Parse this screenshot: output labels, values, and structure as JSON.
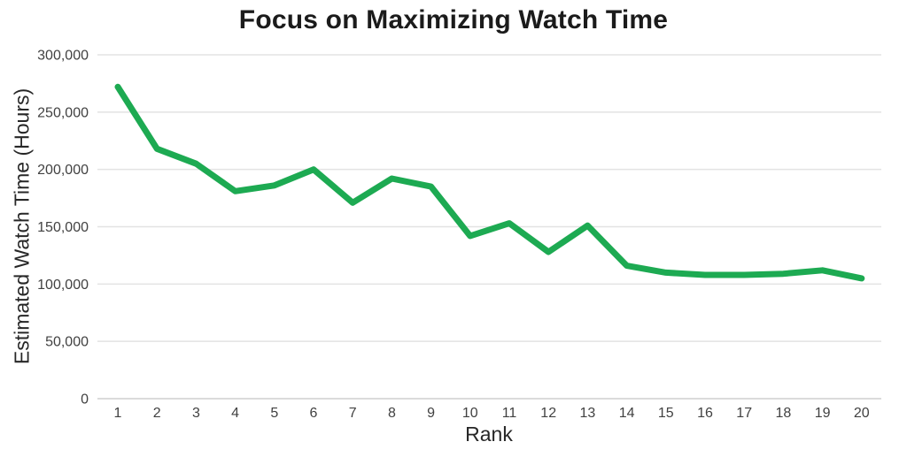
{
  "chart_data": {
    "type": "line",
    "title": "Focus on Maximizing Watch Time",
    "xlabel": "Rank",
    "ylabel": "Estimated Watch Time (Hours)",
    "x": [
      1,
      2,
      3,
      4,
      5,
      6,
      7,
      8,
      9,
      10,
      11,
      12,
      13,
      14,
      15,
      16,
      17,
      18,
      19,
      20
    ],
    "values": [
      272000,
      218000,
      205000,
      181000,
      186000,
      200000,
      171000,
      192000,
      185000,
      142000,
      153000,
      128000,
      151000,
      116000,
      110000,
      108000,
      108000,
      109000,
      112000,
      105000
    ],
    "ylim": [
      0,
      300000
    ],
    "ytick_step": 50000,
    "grid": "horizontal",
    "legend": "none",
    "line_color": "#1daa52",
    "line_width": 7,
    "grid_color": "#e3e3e3",
    "axis_line_color": "#cfcfcf",
    "tick_label_color": "#414141",
    "title_color": "#1b1b1b",
    "background_color": "#ffffff"
  }
}
